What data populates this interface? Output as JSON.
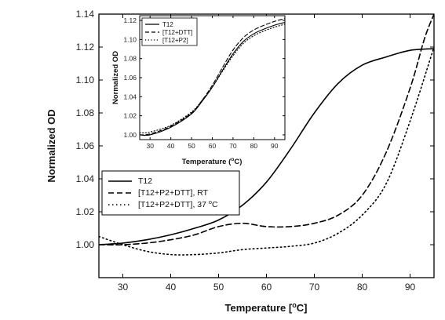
{
  "chart_data": [
    {
      "type": "line",
      "xlabel": "Temperature [°C]",
      "ylabel": "Normalized OD",
      "xlim": [
        25,
        95
      ],
      "ylim": [
        0.98,
        1.14
      ],
      "x_ticks": [
        "30",
        "40",
        "50",
        "60",
        "70",
        "80",
        "90"
      ],
      "y_ticks": [
        "1.00",
        "1.02",
        "1.04",
        "1.06",
        "1.08",
        "1.10",
        "1.12",
        "1.14"
      ],
      "legend": "lower-left",
      "series": [
        {
          "name": "T12",
          "style": "solid",
          "x": [
            25,
            30,
            35,
            40,
            45,
            50,
            55,
            60,
            65,
            70,
            75,
            80,
            85,
            90,
            95
          ],
          "y": [
            1.0,
            1.001,
            1.003,
            1.006,
            1.01,
            1.015,
            1.024,
            1.038,
            1.058,
            1.08,
            1.098,
            1.109,
            1.114,
            1.118,
            1.119
          ]
        },
        {
          "name": "[T12+P2+DTT], RT",
          "style": "dashed",
          "x": [
            25,
            30,
            35,
            40,
            45,
            50,
            55,
            60,
            65,
            70,
            75,
            80,
            85,
            90,
            93,
            95
          ],
          "y": [
            1.0,
            1.0,
            1.001,
            1.003,
            1.006,
            1.011,
            1.013,
            1.011,
            1.011,
            1.013,
            1.018,
            1.03,
            1.056,
            1.095,
            1.125,
            1.14
          ]
        },
        {
          "name": "[T12+P2+DTT], 37 °C",
          "style": "dotted",
          "x": [
            25,
            30,
            35,
            40,
            45,
            50,
            55,
            60,
            65,
            70,
            75,
            80,
            85,
            90,
            95
          ],
          "y": [
            1.005,
            1.0,
            0.996,
            0.994,
            0.994,
            0.995,
            0.997,
            0.998,
            0.999,
            1.001,
            1.007,
            1.018,
            1.037,
            1.075,
            1.12
          ]
        }
      ]
    },
    {
      "type": "line",
      "xlabel": "Temperature (°C)",
      "ylabel": "Normalized OD",
      "xlim": [
        25,
        95
      ],
      "ylim": [
        0.995,
        1.125
      ],
      "x_ticks": [
        "30",
        "40",
        "50",
        "60",
        "70",
        "80",
        "90"
      ],
      "y_ticks": [
        "1.00",
        "1.02",
        "1.04",
        "1.06",
        "1.08",
        "1.10",
        "1.12"
      ],
      "legend": "top-left",
      "series": [
        {
          "name": "T12",
          "style": "solid",
          "x": [
            25,
            30,
            40,
            50,
            55,
            60,
            65,
            70,
            75,
            80,
            85,
            90,
            95
          ],
          "y": [
            1.0,
            1.0,
            1.008,
            1.022,
            1.035,
            1.05,
            1.068,
            1.085,
            1.098,
            1.106,
            1.111,
            1.115,
            1.118
          ]
        },
        {
          "name": "[T12+DTT]",
          "style": "dashed",
          "x": [
            25,
            30,
            40,
            50,
            55,
            60,
            65,
            70,
            75,
            80,
            85,
            90,
            95
          ],
          "y": [
            1.0,
            1.001,
            1.009,
            1.023,
            1.036,
            1.052,
            1.071,
            1.089,
            1.102,
            1.11,
            1.115,
            1.119,
            1.122
          ]
        },
        {
          "name": "[T12+P2]",
          "style": "dotted",
          "x": [
            25,
            30,
            40,
            50,
            55,
            60,
            65,
            70,
            75,
            80,
            85,
            90,
            95
          ],
          "y": [
            1.002,
            1.003,
            1.01,
            1.024,
            1.036,
            1.05,
            1.067,
            1.083,
            1.096,
            1.104,
            1.109,
            1.113,
            1.116
          ]
        }
      ]
    }
  ]
}
